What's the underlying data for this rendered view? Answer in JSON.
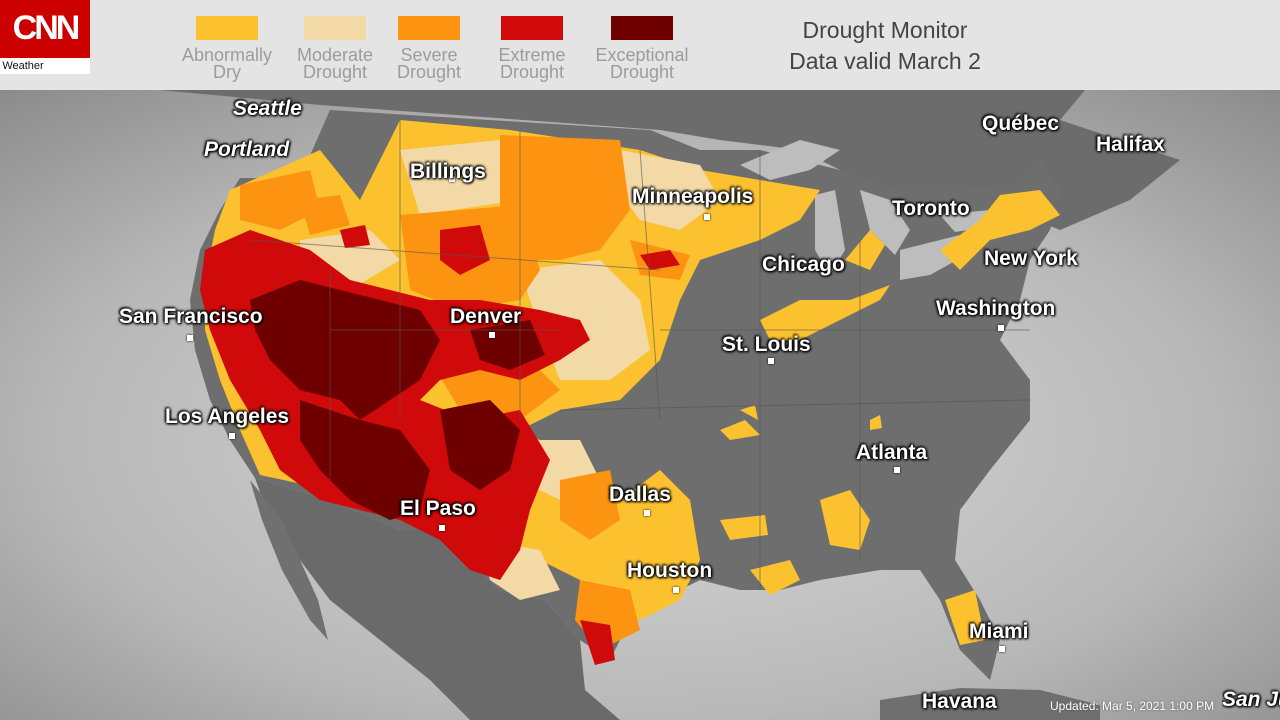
{
  "logo": {
    "name": "CNN",
    "sub": "Weather"
  },
  "legend": [
    {
      "label": "Abnormally\nDry",
      "color": "#fcc12e"
    },
    {
      "label": "Moderate\nDrought",
      "color": "#f2d9a6"
    },
    {
      "label": "Severe\nDrought",
      "color": "#fd9411"
    },
    {
      "label": "Extreme\nDrought",
      "color": "#d00a0a"
    },
    {
      "label": "Exceptional\nDrought",
      "color": "#6e0000"
    }
  ],
  "title": {
    "line1": "Drought Monitor",
    "line2": "Data valid March 2"
  },
  "cities": [
    {
      "name": "Seattle",
      "italic": true
    },
    {
      "name": "Portland",
      "italic": true
    },
    {
      "name": "Billings"
    },
    {
      "name": "Minneapolis"
    },
    {
      "name": "Québec"
    },
    {
      "name": "Halifax"
    },
    {
      "name": "Toronto"
    },
    {
      "name": "Chicago"
    },
    {
      "name": "New York"
    },
    {
      "name": "San Francisco"
    },
    {
      "name": "Denver"
    },
    {
      "name": "Washington"
    },
    {
      "name": "St. Louis"
    },
    {
      "name": "Los Angeles"
    },
    {
      "name": "Atlanta"
    },
    {
      "name": "Dallas"
    },
    {
      "name": "El Paso"
    },
    {
      "name": "Houston"
    },
    {
      "name": "Miami"
    },
    {
      "name": "Havana"
    },
    {
      "name": "San Juan"
    }
  ],
  "updated": "Updated:   Mar 5, 2021   1:00 PM"
}
